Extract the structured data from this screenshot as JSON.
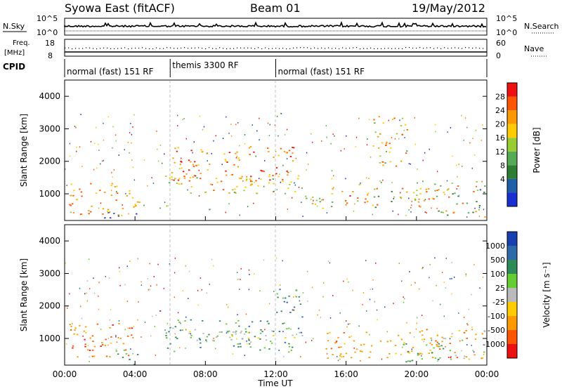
{
  "header": {
    "station": "Syowa East (fitACF)",
    "beam": "Beam 01",
    "date": "19/May/2012"
  },
  "panels": {
    "sky_label": "N.Sky",
    "search_label": "N.Search",
    "freq_label_1": "Freq.",
    "freq_label_2": "[MHz]",
    "nave_label": "Nave",
    "cpid_label": "CPID",
    "sky_ticks": [
      "10^5",
      "10^0"
    ],
    "search_ticks": [
      "10^5",
      "10^0"
    ],
    "freq_ticks": [
      "18",
      "8"
    ],
    "nave_ticks": [
      "60",
      "0"
    ]
  },
  "cpid": [
    {
      "label": "normal (fast) 151 RF",
      "start": 0,
      "end": 6
    },
    {
      "label": "themis 3300 RF",
      "start": 6,
      "end": 12
    },
    {
      "label": "normal (fast) 151 RF",
      "start": 12,
      "end": 24
    }
  ],
  "axes": {
    "ylabel": "Slant Range [km]",
    "xlabel": "Time UT",
    "yticks": [
      "1000",
      "2000",
      "3000",
      "4000"
    ],
    "xticks": [
      "00:00",
      "04:00",
      "08:00",
      "12:00",
      "16:00",
      "20:00",
      "00:00"
    ]
  },
  "power_scale": {
    "title": "Power [dB]",
    "labels": [
      "28",
      "24",
      "20",
      "16",
      "12",
      "8",
      "4"
    ],
    "colors": [
      "#ee1010",
      "#ff5500",
      "#ff9900",
      "#ffcc00",
      "#99cc33",
      "#55aa55",
      "#2e7d32",
      "#1e5fa8",
      "#1a2fd0"
    ]
  },
  "velocity_scale": {
    "title": "Velocity [m s⁻¹]",
    "labels": [
      "1000",
      "500",
      "100",
      "25",
      "-25",
      "-100",
      "-500",
      "-1000"
    ],
    "colors": [
      "#1a3fb0",
      "#2e6aa8",
      "#2e8b57",
      "#66cc33",
      "#bbbbbb",
      "#ffcc00",
      "#ff9900",
      "#ff5500",
      "#ee1010"
    ]
  },
  "chart_data": [
    {
      "type": "heatmap",
      "title": "Power [dB]",
      "xlabel": "Time UT",
      "ylabel": "Slant Range [km]",
      "xlim": [
        0,
        24
      ],
      "ylim": [
        180,
        4500
      ],
      "color_levels": [
        4,
        8,
        12,
        16,
        20,
        24,
        28
      ],
      "blobs": [
        {
          "x": 0.2,
          "x2": 4.3,
          "y": 350,
          "y2": 1400,
          "c": [
            0.6,
            0.9
          ]
        },
        {
          "x": 2.2,
          "x2": 4.2,
          "y": 250,
          "y2": 500,
          "c": [
            0.0,
            0.2
          ]
        },
        {
          "x": 5.7,
          "x2": 13.5,
          "y": 1000,
          "y2": 1600,
          "c": [
            0.4,
            0.8
          ]
        },
        {
          "x": 6.0,
          "x2": 13.2,
          "y": 1400,
          "y2": 2500,
          "c": [
            0.6,
            1.0
          ]
        },
        {
          "x": 13.5,
          "x2": 15.2,
          "y": 500,
          "y2": 1200,
          "c": [
            0.3,
            0.8
          ]
        },
        {
          "x": 15.5,
          "x2": 21.8,
          "y": 600,
          "y2": 1300,
          "c": [
            0.3,
            0.9
          ]
        },
        {
          "x": 21.0,
          "x2": 23.9,
          "y": 300,
          "y2": 1400,
          "c": [
            0.2,
            0.9
          ]
        },
        {
          "x": 17.5,
          "x2": 19.5,
          "y": 1800,
          "y2": 3400,
          "c": [
            0.4,
            0.9
          ]
        }
      ]
    },
    {
      "type": "heatmap",
      "title": "Velocity [m s⁻¹]",
      "xlabel": "Time UT",
      "ylabel": "Slant Range [km]",
      "xlim": [
        0,
        24
      ],
      "ylim": [
        180,
        4500
      ],
      "color_levels": [
        -1000,
        -500,
        -100,
        -25,
        25,
        100,
        500,
        1000
      ],
      "blobs": [
        {
          "x": 0.2,
          "x2": 3.9,
          "y": 350,
          "y2": 1500,
          "c": [
            0.0,
            0.35
          ]
        },
        {
          "x": 2.5,
          "x2": 4.2,
          "y": 200,
          "y2": 700,
          "c": [
            0.55,
            0.8
          ]
        },
        {
          "x": 5.7,
          "x2": 12.9,
          "y": 600,
          "y2": 1600,
          "c": [
            0.55,
            0.8
          ]
        },
        {
          "x": 7.0,
          "x2": 13.5,
          "y": 900,
          "y2": 1300,
          "c": [
            0.44,
            0.46
          ]
        },
        {
          "x": 12.0,
          "x2": 13.5,
          "y": 1200,
          "y2": 2600,
          "c": [
            0.6,
            0.9
          ]
        },
        {
          "x": 14.5,
          "x2": 21.5,
          "y": 400,
          "y2": 1300,
          "c": [
            0.2,
            0.35
          ]
        },
        {
          "x": 18.5,
          "x2": 21.5,
          "y": 300,
          "y2": 900,
          "c": [
            0.55,
            0.8
          ]
        },
        {
          "x": 21.0,
          "x2": 23.9,
          "y": 300,
          "y2": 1300,
          "c": [
            0.15,
            0.7
          ]
        }
      ]
    }
  ]
}
